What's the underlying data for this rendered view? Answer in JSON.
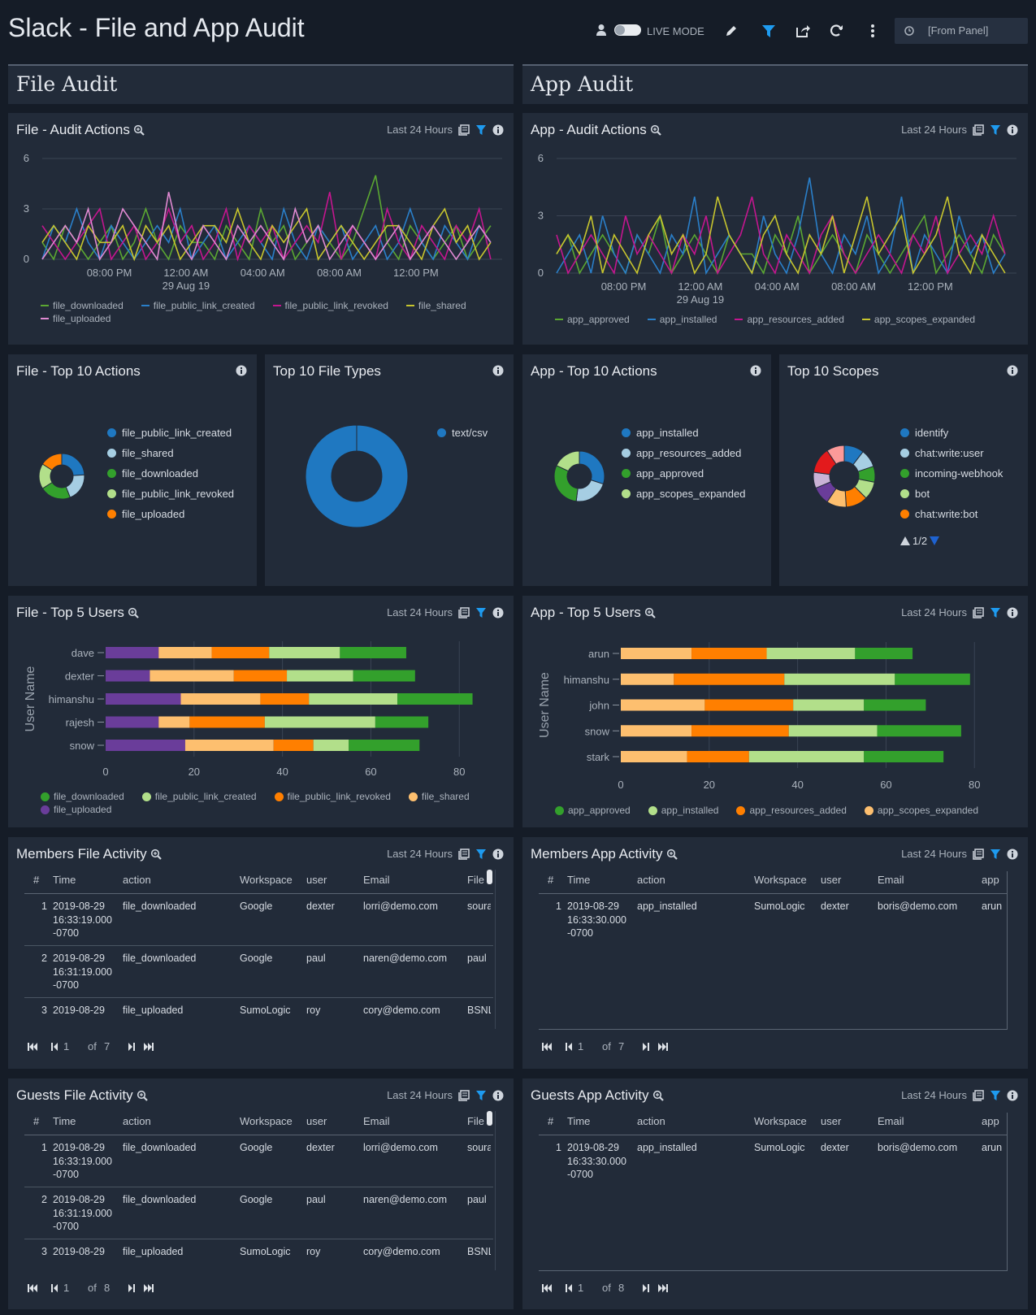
{
  "header": {
    "title": "Slack - File and App Audit",
    "live_mode": "LIVE MODE",
    "time_range": "[From Panel]"
  },
  "sections": [
    "File Audit",
    "App Audit"
  ],
  "panels": [
    {
      "title": "File - Audit Actions",
      "time": "Last 24 Hours",
      "chart_data": {
        "type": "line",
        "x": [
          0,
          0.6,
          1.2,
          1.8,
          2.4,
          3,
          3.6,
          4.2,
          4.8,
          5.4,
          6,
          6.6,
          7.2,
          7.8,
          8.4,
          9,
          9.6,
          10.2,
          10.8,
          11.4,
          12,
          12.6,
          13.2,
          13.8,
          14.4,
          15,
          15.6,
          16.2,
          16.8,
          17.4,
          18,
          18.6,
          19.2,
          19.8,
          20.4,
          21,
          21.6,
          22.2,
          22.8,
          23.4
        ],
        "xlim": [
          0,
          24
        ],
        "xticks": [
          {
            "value": 3.5,
            "label": "08:00 PM"
          },
          {
            "value": 7.5,
            "label": "12:00 AM\n29 Aug 19"
          },
          {
            "value": 11.5,
            "label": "04:00 AM"
          },
          {
            "value": 15.5,
            "label": "08:00 AM"
          },
          {
            "value": 19.5,
            "label": "12:00 PM"
          }
        ],
        "ylim": [
          0,
          6
        ],
        "yticks": [
          0,
          3,
          6
        ],
        "grid": true,
        "series": [
          {
            "name": "file_downloaded",
            "color": "#5ba732",
            "values": [
              1,
              0,
              2,
              1,
              0,
              1,
              2,
              0,
              1,
              3,
              1,
              0,
              2,
              1,
              1,
              0,
              2,
              1,
              0,
              3,
              1,
              2,
              0,
              1,
              2,
              1,
              0,
              1,
              3,
              5,
              1,
              0,
              2,
              1,
              0,
              1,
              2,
              0,
              1,
              2
            ]
          },
          {
            "name": "file_public_link_created",
            "color": "#2a7fc9",
            "values": [
              0,
              2,
              1,
              3,
              1,
              0,
              2,
              1,
              0,
              1,
              2,
              1,
              3,
              0,
              1,
              2,
              0,
              1,
              2,
              1,
              0,
              3,
              1,
              0,
              2,
              1,
              2,
              0,
              1,
              2,
              0,
              1,
              3,
              1,
              0,
              2,
              1,
              0,
              2,
              1
            ]
          },
          {
            "name": "file_public_link_revoked",
            "color": "#c4168f",
            "values": [
              2,
              1,
              0,
              1,
              2,
              3,
              0,
              1,
              2,
              0,
              1,
              3,
              1,
              2,
              0,
              1,
              3,
              0,
              2,
              1,
              2,
              0,
              1,
              2,
              1,
              4,
              0,
              2,
              1,
              0,
              3,
              1,
              0,
              2,
              1,
              0,
              2,
              1,
              3,
              0
            ]
          },
          {
            "name": "file_shared",
            "color": "#c7c52e",
            "values": [
              1,
              2,
              1,
              0,
              2,
              1,
              1,
              2,
              0,
              2,
              1,
              2,
              0,
              1,
              2,
              2,
              1,
              3,
              1,
              0,
              2,
              1,
              2,
              3,
              0,
              1,
              2,
              1,
              0,
              1,
              2,
              2,
              1,
              0,
              2,
              3,
              1,
              2,
              0,
              1
            ]
          },
          {
            "name": "file_uploaded",
            "color": "#e08ad2",
            "values": [
              0,
              1,
              2,
              1,
              3,
              0,
              1,
              3,
              2,
              1,
              0,
              4,
              1,
              0,
              2,
              1,
              0,
              2,
              1,
              2,
              1,
              0,
              3,
              1,
              2,
              0,
              1,
              2,
              1,
              0,
              1,
              2,
              0,
              1,
              2,
              1,
              0,
              1,
              2,
              1
            ]
          }
        ]
      }
    },
    {
      "title": "App - Audit Actions",
      "time": "Last 24 Hours",
      "chart_data": {
        "type": "line",
        "x": [
          0,
          0.6,
          1.2,
          1.8,
          2.4,
          3,
          3.6,
          4.2,
          4.8,
          5.4,
          6,
          6.6,
          7.2,
          7.8,
          8.4,
          9,
          9.6,
          10.2,
          10.8,
          11.4,
          12,
          12.6,
          13.2,
          13.8,
          14.4,
          15,
          15.6,
          16.2,
          16.8,
          17.4,
          18,
          18.6,
          19.2,
          19.8,
          20.4,
          21,
          21.6,
          22.2,
          22.8,
          23.4
        ],
        "xlim": [
          0,
          24
        ],
        "xticks": [
          {
            "value": 3.5,
            "label": "08:00 PM"
          },
          {
            "value": 7.5,
            "label": "12:00 AM\n29 Aug 19"
          },
          {
            "value": 11.5,
            "label": "04:00 AM"
          },
          {
            "value": 15.5,
            "label": "08:00 AM"
          },
          {
            "value": 19.5,
            "label": "12:00 PM"
          }
        ],
        "ylim": [
          0,
          6
        ],
        "yticks": [
          0,
          3,
          6
        ],
        "grid": true,
        "series": [
          {
            "name": "app_approved",
            "color": "#5ba732",
            "values": [
              1,
              2,
              0,
              1,
              2,
              1,
              0,
              2,
              1,
              3,
              0,
              1,
              2,
              1,
              0,
              2,
              1,
              1,
              0,
              2,
              1,
              3,
              0,
              1,
              2,
              1,
              0,
              2,
              1,
              0,
              1,
              2,
              3,
              0,
              1,
              2,
              1,
              0,
              2,
              1
            ]
          },
          {
            "name": "app_installed",
            "color": "#2a7fc9",
            "values": [
              0,
              1,
              2,
              0,
              3,
              1,
              0,
              2,
              1,
              0,
              2,
              1,
              4,
              0,
              1,
              2,
              1,
              0,
              3,
              1,
              0,
              2,
              5,
              1,
              0,
              2,
              1,
              3,
              0,
              1,
              4,
              0,
              2,
              1,
              0,
              3,
              1,
              2,
              0,
              1
            ]
          },
          {
            "name": "app_resources_added",
            "color": "#c4168f",
            "values": [
              2,
              0,
              1,
              2,
              1,
              0,
              3,
              1,
              2,
              1,
              0,
              2,
              1,
              3,
              0,
              1,
              2,
              4,
              1,
              0,
              2,
              1,
              0,
              2,
              3,
              1,
              0,
              1,
              2,
              1,
              0,
              2,
              1,
              3,
              0,
              1,
              2,
              1,
              3,
              1
            ]
          },
          {
            "name": "app_scopes_expanded",
            "color": "#c7c52e",
            "values": [
              1,
              2,
              1,
              3,
              0,
              2,
              1,
              0,
              2,
              3,
              1,
              2,
              0,
              1,
              4,
              2,
              1,
              0,
              2,
              3,
              1,
              0,
              2,
              1,
              3,
              0,
              2,
              4,
              1,
              2,
              3,
              0,
              1,
              2,
              4,
              1,
              0,
              2,
              1,
              0
            ]
          }
        ]
      }
    },
    {
      "title": "File - Top 10 Actions",
      "chart_data": {
        "type": "donut",
        "categories": [
          "file_public_link_created",
          "file_shared",
          "file_downloaded",
          "file_public_link_revoked",
          "file_uploaded"
        ],
        "values": [
          24,
          20,
          22,
          18,
          16
        ],
        "colors": [
          "#1f78c1",
          "#a6cee3",
          "#33a02c",
          "#b2df8a",
          "#ff7f00"
        ]
      }
    },
    {
      "title": "Top 10 File Types",
      "chart_data": {
        "type": "donut",
        "categories": [
          "text/csv"
        ],
        "values": [
          100
        ],
        "colors": [
          "#1f78c1"
        ]
      }
    },
    {
      "title": "App - Top 10 Actions",
      "chart_data": {
        "type": "donut",
        "categories": [
          "app_installed",
          "app_resources_added",
          "app_approved",
          "app_scopes_expanded"
        ],
        "values": [
          30,
          22,
          30,
          18
        ],
        "colors": [
          "#1f78c1",
          "#a6cee3",
          "#33a02c",
          "#b2df8a"
        ]
      }
    },
    {
      "title": "Top 10 Scopes",
      "chart_data": {
        "type": "donut",
        "categories": [
          "identify",
          "chat:write:user",
          "incoming-webhook",
          "bot",
          "chat:write:bot",
          null,
          null,
          null,
          null,
          null
        ],
        "values": [
          10,
          9,
          8,
          9,
          11,
          10,
          9,
          8,
          13,
          9
        ],
        "colors": [
          "#1f78c1",
          "#a6cee3",
          "#33a02c",
          "#b2df8a",
          "#ff7f00",
          "#fdbf6f",
          "#6a3d9a",
          "#cab2d6",
          "#e31a1c",
          "#fb9a99"
        ],
        "legend_page": "1/2"
      }
    },
    {
      "title": "File - Top 5 Users",
      "time": "Last 24 Hours",
      "chart_data": {
        "type": "hbar_stacked",
        "y_label": "User Name",
        "categories": [
          "dave",
          "dexter",
          "himanshu",
          "rajesh",
          "snow"
        ],
        "xlim": [
          0,
          84
        ],
        "xticks": [
          0,
          20,
          40,
          60,
          80
        ],
        "grid": true,
        "series": [
          {
            "name": "file_downloaded",
            "color": "#33a02c",
            "values": [
              15,
              14,
              17,
              12,
              16
            ]
          },
          {
            "name": "file_public_link_created",
            "color": "#b2df8a",
            "values": [
              16,
              15,
              20,
              25,
              8
            ]
          },
          {
            "name": "file_public_link_revoked",
            "color": "#ff7f00",
            "values": [
              13,
              12,
              11,
              17,
              9
            ]
          },
          {
            "name": "file_shared",
            "color": "#fdbf6f",
            "values": [
              12,
              19,
              18,
              7,
              20
            ]
          },
          {
            "name": "file_uploaded",
            "color": "#6a3d9a",
            "values": [
              12,
              10,
              17,
              12,
              18
            ]
          }
        ]
      }
    },
    {
      "title": "App - Top 5 Users",
      "time": "Last 24 Hours",
      "chart_data": {
        "type": "hbar_stacked",
        "y_label": "User Name",
        "categories": [
          "arun",
          "himanshu",
          "john",
          "snow",
          "stark"
        ],
        "xlim": [
          0,
          84
        ],
        "xticks": [
          0,
          20,
          40,
          60,
          80
        ],
        "grid": true,
        "series": [
          {
            "name": "app_approved",
            "color": "#33a02c",
            "values": [
              13,
              17,
              14,
              19,
              18
            ]
          },
          {
            "name": "app_installed",
            "color": "#b2df8a",
            "values": [
              20,
              25,
              16,
              20,
              26
            ]
          },
          {
            "name": "app_resources_added",
            "color": "#ff7f00",
            "values": [
              17,
              25,
              20,
              22,
              14
            ]
          },
          {
            "name": "app_scopes_expanded",
            "color": "#fdbf6f",
            "values": [
              16,
              12,
              19,
              16,
              15
            ]
          }
        ]
      }
    },
    {
      "title": "Members File Activity",
      "time": "Last 24 Hours",
      "table": {
        "columns": [
          "#",
          "Time",
          "action",
          "Workspace",
          "user",
          "Email",
          "File"
        ],
        "rows": [
          [
            1,
            "2019-08-29 16:33:19.000 -0700",
            "file_downloaded",
            "Google",
            "dexter",
            "lorri@demo.com",
            "soura"
          ],
          [
            2,
            "2019-08-29 16:31:19.000 -0700",
            "file_downloaded",
            "Google",
            "paul",
            "naren@demo.com",
            "paul"
          ],
          [
            3,
            "2019-08-29",
            "file_uploaded",
            "SumoLogic",
            "roy",
            "cory@demo.com",
            "BSNL"
          ]
        ]
      },
      "pager": {
        "page": 1,
        "of": "of",
        "total": 7
      }
    },
    {
      "title": "Members App Activity",
      "time": "Last 24 Hours",
      "table": {
        "columns": [
          "#",
          "Time",
          "action",
          "Workspace",
          "user",
          "Email",
          "app"
        ],
        "rows": [
          [
            1,
            "2019-08-29 16:33:30.000 -0700",
            "app_installed",
            "SumoLogic",
            "dexter",
            "boris@demo.com",
            "arun"
          ]
        ]
      },
      "pager": {
        "page": 1,
        "of": "of",
        "total": 7
      }
    },
    {
      "title": "Guests File Activity",
      "time": "Last 24 Hours",
      "table": {
        "columns": [
          "#",
          "Time",
          "action",
          "Workspace",
          "user",
          "Email",
          "File"
        ],
        "rows": [
          [
            1,
            "2019-08-29 16:33:19.000 -0700",
            "file_downloaded",
            "Google",
            "dexter",
            "lorri@demo.com",
            "soura"
          ],
          [
            2,
            "2019-08-29 16:31:19.000 -0700",
            "file_downloaded",
            "Google",
            "paul",
            "naren@demo.com",
            "paul"
          ],
          [
            3,
            "2019-08-29",
            "file_uploaded",
            "SumoLogic",
            "roy",
            "cory@demo.com",
            "BSNL"
          ]
        ]
      },
      "pager": {
        "page": 1,
        "of": "of",
        "total": 8
      }
    },
    {
      "title": "Guests App Activity",
      "time": "Last 24 Hours",
      "table": {
        "columns": [
          "#",
          "Time",
          "action",
          "Workspace",
          "user",
          "Email",
          "app"
        ],
        "rows": [
          [
            1,
            "2019-08-29 16:33:30.000 -0700",
            "app_installed",
            "SumoLogic",
            "dexter",
            "boris@demo.com",
            "arun"
          ]
        ]
      },
      "pager": {
        "page": 1,
        "of": "of",
        "total": 8
      }
    }
  ]
}
